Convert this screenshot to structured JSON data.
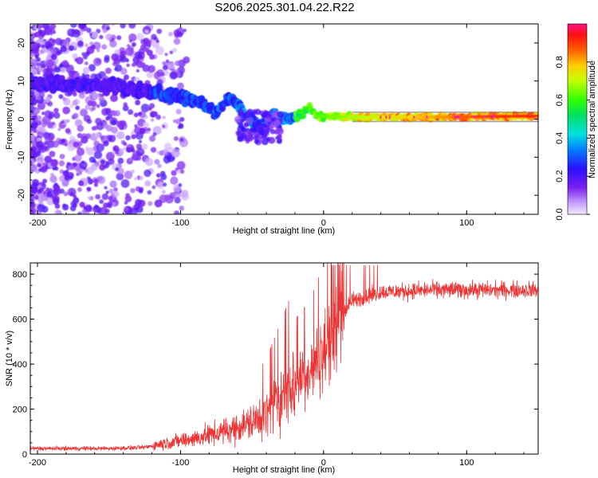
{
  "title": "S206.2025.301.04.22.R22",
  "chart_data": [
    {
      "type": "heatmap",
      "name": "spectrogram",
      "xlabel": "Height of straight line (km)",
      "ylabel": "Frequency (Hz)",
      "xlim": [
        -205,
        150
      ],
      "ylim": [
        -25,
        25
      ],
      "xticks": [
        -200,
        -100,
        0,
        100
      ],
      "yticks": [
        -20,
        -10,
        0,
        10,
        20
      ],
      "colorbar": {
        "label": "Normalized spectral amplitude",
        "range": [
          0,
          1
        ],
        "ticks": [
          "0.0",
          "0.2",
          "0.4",
          "0.6",
          "0.8"
        ]
      },
      "ridge": [
        {
          "x": -205,
          "f": 9.5
        },
        {
          "x": -180,
          "f": 9.2
        },
        {
          "x": -150,
          "f": 8.8
        },
        {
          "x": -125,
          "f": 7.5
        },
        {
          "x": -100,
          "f": 6.0
        },
        {
          "x": -85,
          "f": 4.0
        },
        {
          "x": -75,
          "f": 2.0
        },
        {
          "x": -65,
          "f": 5.5
        },
        {
          "x": -55,
          "f": 1.5
        },
        {
          "x": -45,
          "f": -2.5
        },
        {
          "x": -38,
          "f": 0.5
        },
        {
          "x": -25,
          "f": 0.0
        },
        {
          "x": -15,
          "f": 1.5
        },
        {
          "x": -10,
          "f": 3.0
        },
        {
          "x": -5,
          "f": 0.8
        },
        {
          "x": 20,
          "f": 0.5
        },
        {
          "x": 60,
          "f": 0.5
        },
        {
          "x": 100,
          "f": 0.6
        },
        {
          "x": 150,
          "f": 0.8
        }
      ]
    },
    {
      "type": "line",
      "name": "snr",
      "xlabel": "Height of straight line (km)",
      "ylabel": "SNR (10 * v/v)",
      "xlim": [
        -205,
        150
      ],
      "ylim": [
        0,
        850
      ],
      "xticks": [
        -200,
        -100,
        0,
        100
      ],
      "yticks": [
        0,
        200,
        400,
        600,
        800
      ],
      "color": "#ee3333",
      "trend": [
        {
          "x": -205,
          "y": 25
        },
        {
          "x": -150,
          "y": 25
        },
        {
          "x": -125,
          "y": 30
        },
        {
          "x": -110,
          "y": 50
        },
        {
          "x": -90,
          "y": 70
        },
        {
          "x": -70,
          "y": 100
        },
        {
          "x": -60,
          "y": 120
        },
        {
          "x": -50,
          "y": 140
        },
        {
          "x": -40,
          "y": 180
        },
        {
          "x": -30,
          "y": 250
        },
        {
          "x": -20,
          "y": 320
        },
        {
          "x": -10,
          "y": 360
        },
        {
          "x": 0,
          "y": 450
        },
        {
          "x": 10,
          "y": 600
        },
        {
          "x": 20,
          "y": 680
        },
        {
          "x": 40,
          "y": 720
        },
        {
          "x": 80,
          "y": 730
        },
        {
          "x": 150,
          "y": 730
        }
      ]
    }
  ]
}
